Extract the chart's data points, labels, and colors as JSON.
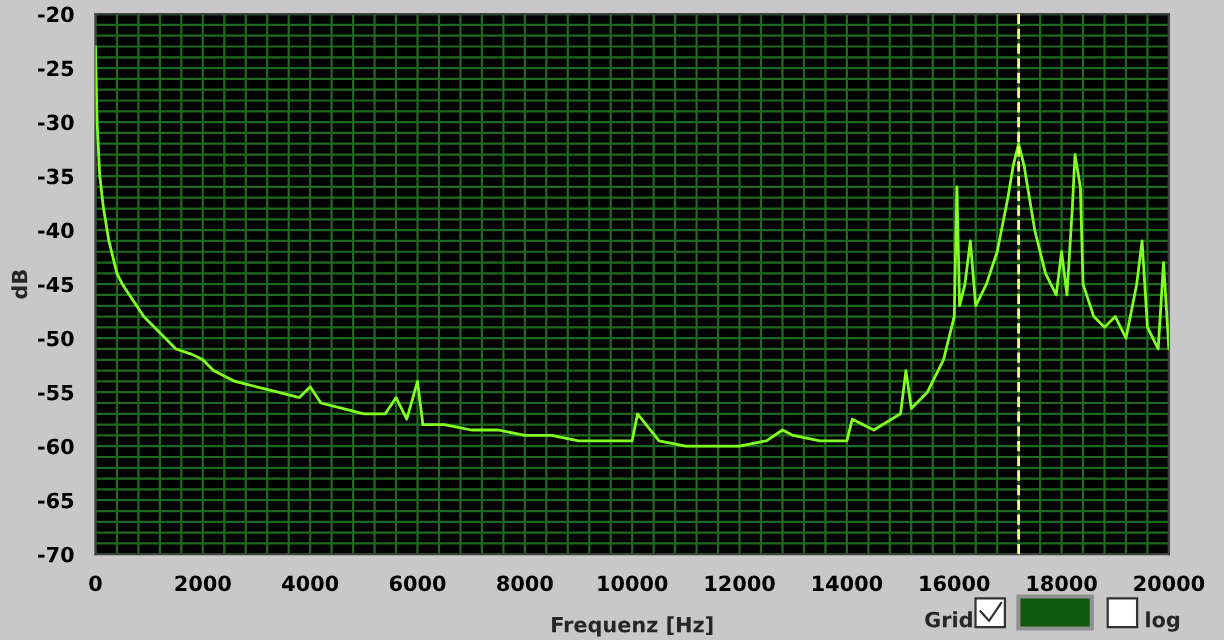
{
  "chart_data": {
    "type": "line",
    "xlabel": "Frequenz [Hz]",
    "ylabel": "dB",
    "x": [
      0,
      30,
      80,
      150,
      250,
      400,
      500,
      700,
      900,
      1200,
      1500,
      1800,
      2000,
      2200,
      2600,
      3000,
      3400,
      3800,
      4000,
      4200,
      4600,
      5000,
      5400,
      5600,
      5800,
      6000,
      6100,
      6500,
      7000,
      7500,
      8000,
      8500,
      9000,
      9500,
      10000,
      10100,
      10500,
      11000,
      11500,
      12000,
      12500,
      12800,
      13000,
      13500,
      14000,
      14100,
      14500,
      15000,
      15100,
      15200,
      15500,
      15800,
      16000,
      16050,
      16100,
      16200,
      16300,
      16400,
      16600,
      16800,
      17000,
      17100,
      17200,
      17300,
      17500,
      17700,
      17900,
      18000,
      18100,
      18200,
      18250,
      18350,
      18400,
      18600,
      18800,
      19000,
      19200,
      19400,
      19500,
      19600,
      19800,
      19900,
      20000
    ],
    "series": [
      {
        "color": "#80ff20",
        "values": [
          -23,
          -30,
          -35,
          -38,
          -41,
          -44,
          -45,
          -46.5,
          -48,
          -49.5,
          -51,
          -51.5,
          -52,
          -53,
          -54,
          -54.5,
          -55,
          -55.5,
          -54.5,
          -56,
          -56.5,
          -57,
          -57,
          -55.5,
          -57.5,
          -54,
          -58,
          -58,
          -58.5,
          -58.5,
          -59,
          -59,
          -59.5,
          -59.5,
          -59.5,
          -57,
          -59.5,
          -60,
          -60,
          -60,
          -59.5,
          -58.5,
          -59,
          -59.5,
          -59.5,
          -57.5,
          -58.5,
          -57,
          -53,
          -56.5,
          -55,
          -52,
          -48,
          -36,
          -47,
          -45,
          -41,
          -47,
          -45,
          -42,
          -37,
          -34,
          -32,
          -34,
          -40,
          -44,
          -46,
          -42,
          -46,
          -38,
          -33,
          -36,
          -45,
          -48,
          -49,
          -48,
          -50,
          -45,
          -41,
          -49,
          -51,
          -43,
          -51
        ]
      }
    ],
    "xlim": [
      0,
      20000
    ],
    "xticks": [
      0,
      2000,
      4000,
      6000,
      8000,
      10000,
      12000,
      14000,
      16000,
      18000,
      20000
    ],
    "ylim": [
      -70,
      -20
    ],
    "yticks": [
      -70,
      -65,
      -60,
      -55,
      -50,
      -45,
      -40,
      -35,
      -30,
      -25,
      -20
    ],
    "grid": true,
    "legend": false,
    "line_style": "solid",
    "marker": "none",
    "ref_lines": [
      {
        "axis": "x",
        "value": 17200,
        "color": "#ffff80",
        "line_style": "dashed"
      }
    ],
    "annotations": [
      "Grid",
      "log"
    ]
  }
}
